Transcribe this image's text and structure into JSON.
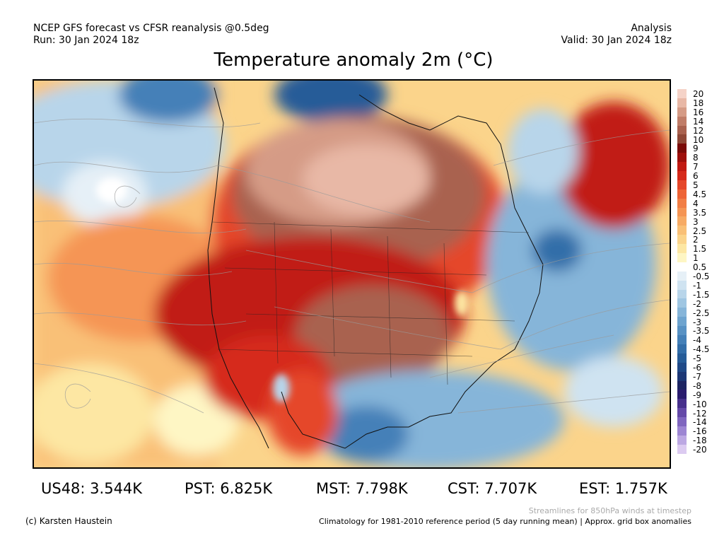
{
  "header": {
    "line1_left": "NCEP GFS forecast vs CFSR reanalysis @0.5deg",
    "line2_left": "Run: 30 Jan 2024 18z",
    "line1_right": "Analysis",
    "line2_right": "Valid: 30 Jan 2024 18z",
    "title": "Temperature anomaly 2m (°C)"
  },
  "colorbar": {
    "labels": [
      "20",
      "18",
      "16",
      "14",
      "12",
      "10",
      "9",
      "8",
      "7",
      "6",
      "5",
      "4.5",
      "4",
      "3.5",
      "3",
      "2.5",
      "2",
      "1.5",
      "1",
      "0.5",
      "-0.5",
      "-1",
      "-1.5",
      "-2",
      "-2.5",
      "-3",
      "-3.5",
      "-4",
      "-4.5",
      "-5",
      "-6",
      "-7",
      "-8",
      "-9",
      "-10",
      "-12",
      "-14",
      "-16",
      "-18",
      "-20"
    ],
    "colors": [
      "#f5d3c8",
      "#e8b8a6",
      "#d59b86",
      "#c07d68",
      "#a9624f",
      "#8f4837",
      "#7a0b08",
      "#9e100c",
      "#c11a12",
      "#d62a1b",
      "#e5472a",
      "#ee6436",
      "#f27e45",
      "#f59554",
      "#f7ab65",
      "#f9c077",
      "#fbd48b",
      "#fde7a3",
      "#fef6c4",
      "#ffffff",
      "#e6f0f7",
      "#cfe3f1",
      "#b8d5ea",
      "#9fc6e2",
      "#86b5d9",
      "#6ea4cf",
      "#5892c4",
      "#4480b8",
      "#336ea9",
      "#265c98",
      "#1f4987",
      "#1c3775",
      "#1d2462",
      "#2a1c6e",
      "#47308c",
      "#6449a8",
      "#7f66bf",
      "#9d86d3",
      "#bca8e3",
      "#dccbf1"
    ]
  },
  "stats": {
    "us48": "US48: 3.544K",
    "pst": "PST: 6.825K",
    "mst": "MST: 7.798K",
    "cst": "CST: 7.707K",
    "est": "EST: 1.757K"
  },
  "footer": {
    "credit": "(c) Karsten Haustein",
    "streamlines": "Streamlines for 850hPa winds at timestep",
    "climatology": "Climatology for 1981-2010 reference period (5 day running mean) | Approx. grid box anomalies"
  }
}
